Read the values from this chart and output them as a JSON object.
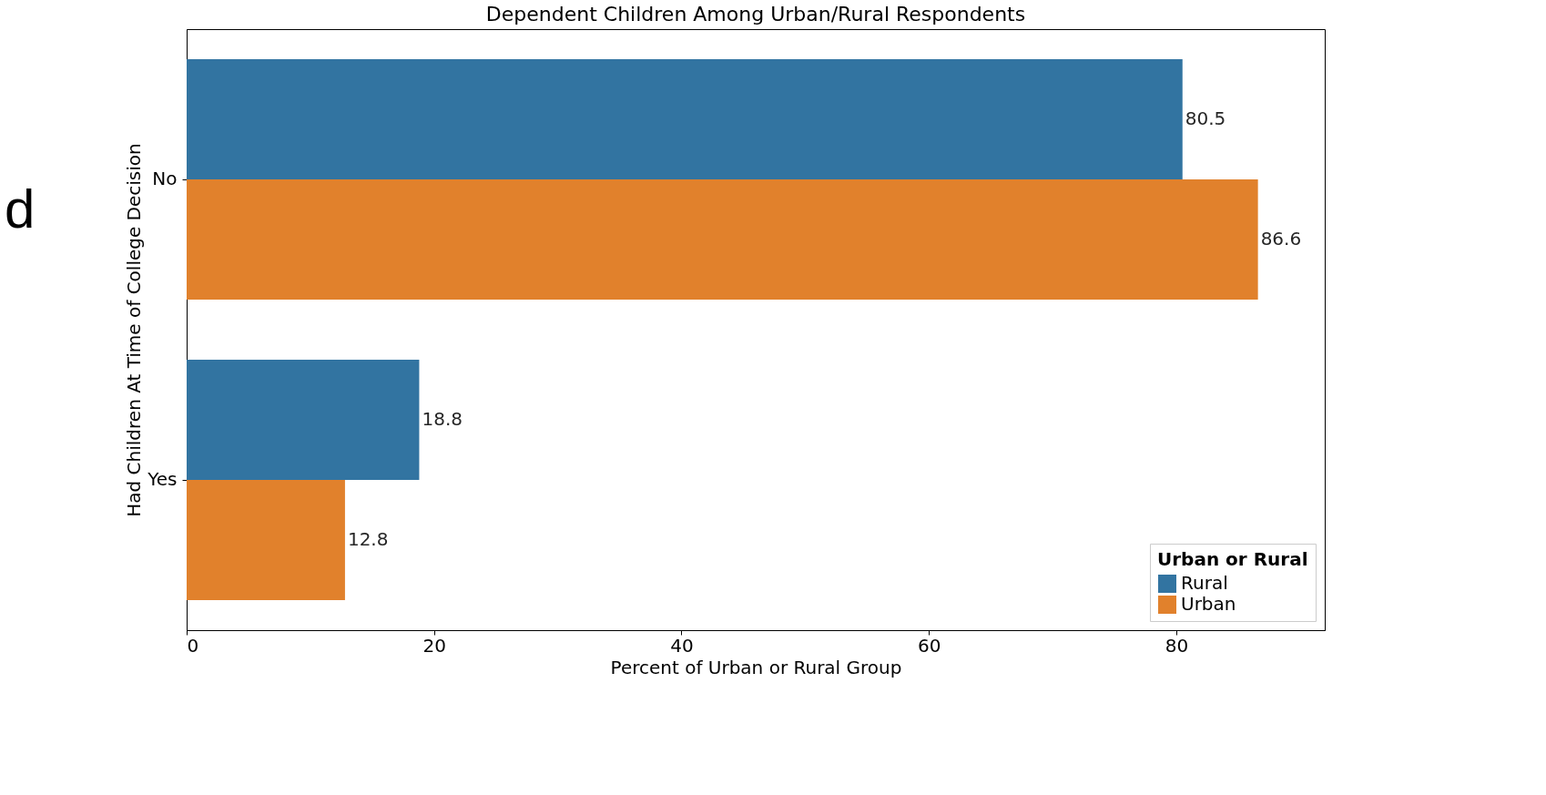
{
  "chart_data": {
    "type": "bar",
    "orientation": "horizontal",
    "title": "Dependent Children Among Urban/Rural Respondents",
    "xlabel": "Percent of Urban or Rural Group",
    "ylabel": "Had Children At Time of College Decision",
    "categories": [
      "No",
      "Yes"
    ],
    "series": [
      {
        "name": "Rural",
        "color": "#3274a1",
        "values": [
          80.5,
          18.8
        ],
        "value_labels": [
          "80.5",
          "18.8"
        ]
      },
      {
        "name": "Urban",
        "color": "#e1812c",
        "values": [
          86.6,
          12.8
        ],
        "value_labels": [
          "86.6",
          "12.8"
        ]
      }
    ],
    "xlim": [
      0,
      92
    ],
    "xticks": [
      0,
      20,
      40,
      60,
      80
    ],
    "grid": false,
    "legend": "bottom right",
    "legend_title": "Urban or Rural",
    "annotations": [
      "d"
    ]
  }
}
